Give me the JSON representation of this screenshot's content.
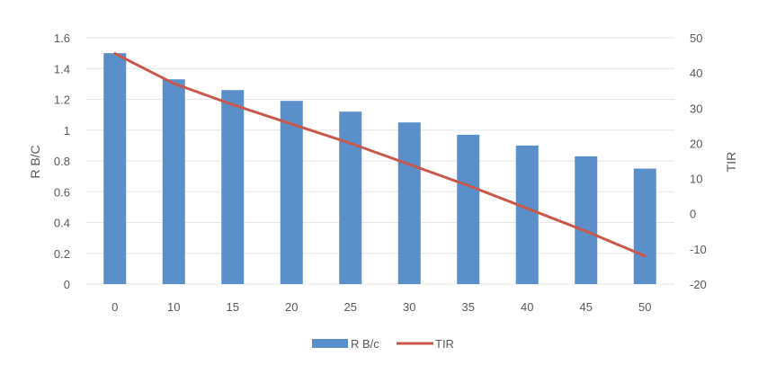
{
  "chart_data": {
    "type": "bar",
    "categories": [
      "0",
      "10",
      "15",
      "20",
      "25",
      "30",
      "35",
      "40",
      "45",
      "50"
    ],
    "series": [
      {
        "name": "R B/c",
        "type": "bar",
        "axis": "left",
        "values": [
          1.5,
          1.33,
          1.26,
          1.19,
          1.12,
          1.05,
          0.97,
          0.9,
          0.83,
          0.75
        ]
      },
      {
        "name": "TIR",
        "type": "line",
        "axis": "right",
        "values": [
          45.5,
          37,
          31,
          25.5,
          20,
          14,
          8,
          1.5,
          -5,
          -12
        ]
      }
    ],
    "y_left": {
      "label": "R B/C",
      "min": 0,
      "max": 1.6,
      "ticks": [
        "0",
        "0.2",
        "0.4",
        "0.6",
        "0.8",
        "1",
        "1.2",
        "1.4",
        "1.6"
      ]
    },
    "y_right": {
      "label": "TIR",
      "min": -20,
      "max": 50,
      "ticks": [
        "-20",
        "-10",
        "0",
        "10",
        "20",
        "30",
        "40",
        "50"
      ]
    },
    "xlabel": "",
    "grid": true,
    "legend": "bottom",
    "colors": {
      "bar": "#5b8fc9",
      "line": "#c9574c",
      "grid": "#e6e6e6",
      "text": "#595959"
    }
  }
}
